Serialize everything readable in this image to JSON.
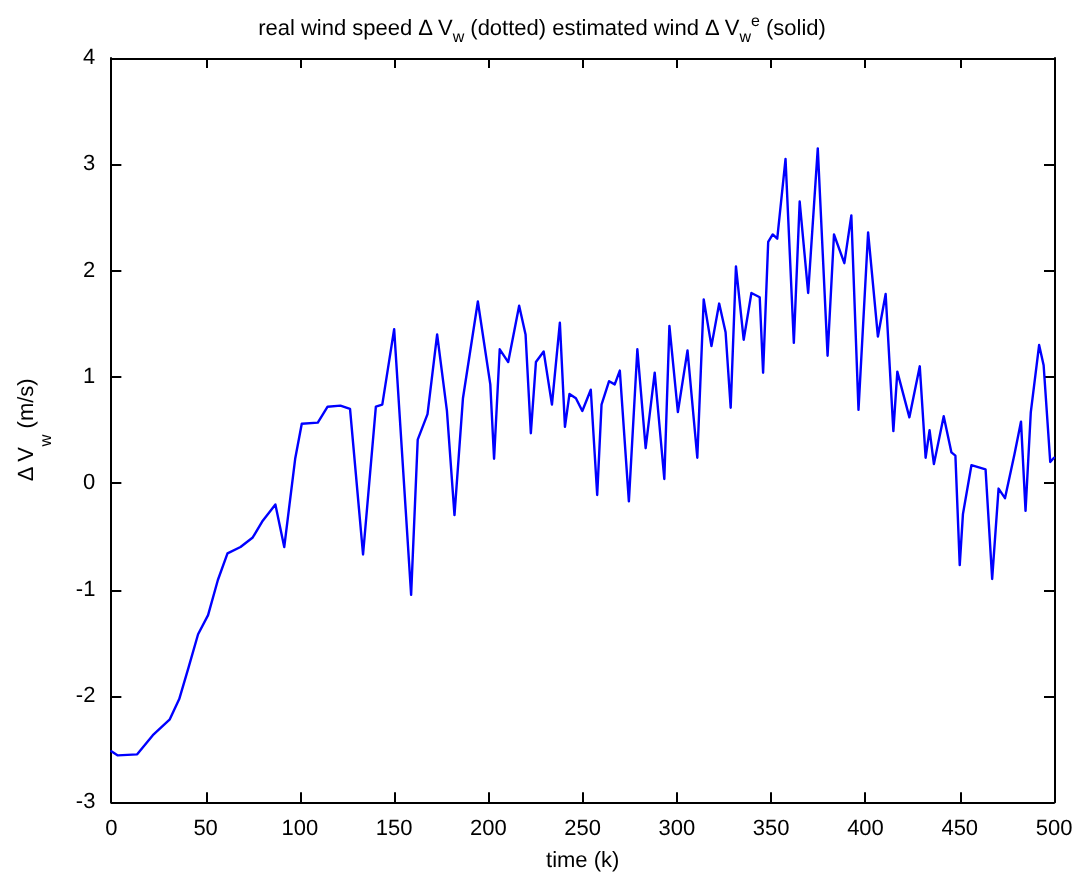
{
  "chart_data": {
    "type": "line",
    "title": "real wind speed Δ V$_{w}$ (dotted) estimated wind Δ V$_{w}$$^{e}$ (solid)",
    "xlabel": "time (k)",
    "ylabel": "Δ V$_{w}$ (m/s)",
    "xlim": [
      0,
      500
    ],
    "xticks": [
      0,
      50,
      100,
      150,
      200,
      250,
      300,
      350,
      400,
      450,
      500
    ],
    "ylim": [
      -3,
      4
    ],
    "yticks": [
      -3,
      -2,
      -1,
      0,
      1,
      2,
      3,
      4
    ],
    "grid": false,
    "marker": "none",
    "line_style": "solid",
    "series": [
      {
        "color": "#0000ff",
        "x": [
          0,
          3.4,
          13.7,
          22,
          31,
          36,
          41,
          46,
          51.3,
          56.5,
          61.6,
          68.5,
          75,
          80,
          87,
          91.7,
          97.5,
          101,
          109.5,
          114.7,
          121.5,
          126.6,
          133.5,
          140.3,
          143.7,
          150,
          159,
          162.5,
          167.7,
          172.8,
          178,
          182,
          186.5,
          194.4,
          201,
          203,
          206,
          210.5,
          216.3,
          219.7,
          222.5,
          225.2,
          229.3,
          233.7,
          237.9,
          240.6,
          243,
          246.4,
          249.8,
          254.3,
          257.7,
          260,
          264,
          267,
          269.7,
          274.5,
          279,
          283.4,
          288.2,
          293.3,
          296,
          300.5,
          305.6,
          310.8,
          314.2,
          318.3,
          322.4,
          325.8,
          328.5,
          331.3,
          335.4,
          339.5,
          343.9,
          345.7,
          348.4,
          350.8,
          353.2,
          357.6,
          362,
          365.1,
          369.6,
          374.7,
          379.9,
          383.3,
          388.8,
          392.5,
          396.3,
          401.4,
          406.6,
          410.7,
          414.8,
          416.9,
          423.3,
          428.8,
          431.9,
          434,
          436.3,
          441.5,
          445.6,
          447.7,
          450,
          451.7,
          456.2,
          463.7,
          467.2,
          470.6,
          474,
          479,
          482.5,
          484.9,
          487.7,
          492.1,
          494.5,
          498,
          500
        ],
        "values": [
          -2.52,
          -2.56,
          -2.55,
          -2.37,
          -2.22,
          -2.03,
          -1.73,
          -1.42,
          -1.24,
          -0.91,
          -0.66,
          -0.6,
          -0.51,
          -0.36,
          -0.2,
          -0.6,
          0.23,
          0.56,
          0.57,
          0.72,
          0.73,
          0.7,
          -0.67,
          0.72,
          0.74,
          1.45,
          -1.05,
          0.41,
          0.65,
          1.4,
          0.68,
          -0.3,
          0.8,
          1.71,
          0.93,
          0.23,
          1.26,
          1.14,
          1.67,
          1.4,
          0.47,
          1.14,
          1.24,
          0.74,
          1.51,
          0.53,
          0.84,
          0.8,
          0.68,
          0.88,
          -0.11,
          0.74,
          0.96,
          0.93,
          1.06,
          -0.17,
          1.26,
          0.33,
          1.04,
          0.04,
          1.48,
          0.67,
          1.25,
          0.24,
          1.73,
          1.29,
          1.69,
          1.42,
          0.71,
          2.04,
          1.35,
          1.79,
          1.75,
          1.04,
          2.27,
          2.34,
          2.3,
          3.05,
          1.32,
          2.65,
          1.79,
          3.15,
          1.2,
          2.34,
          2.07,
          2.52,
          0.69,
          2.36,
          1.38,
          1.78,
          0.49,
          1.05,
          0.62,
          1.1,
          0.24,
          0.5,
          0.18,
          0.63,
          0.29,
          0.26,
          -0.77,
          -0.29,
          0.17,
          0.13,
          -0.9,
          -0.05,
          -0.14,
          0.27,
          0.58,
          -0.26,
          0.67,
          1.3,
          1.11,
          0.2,
          0.24
        ]
      }
    ]
  }
}
